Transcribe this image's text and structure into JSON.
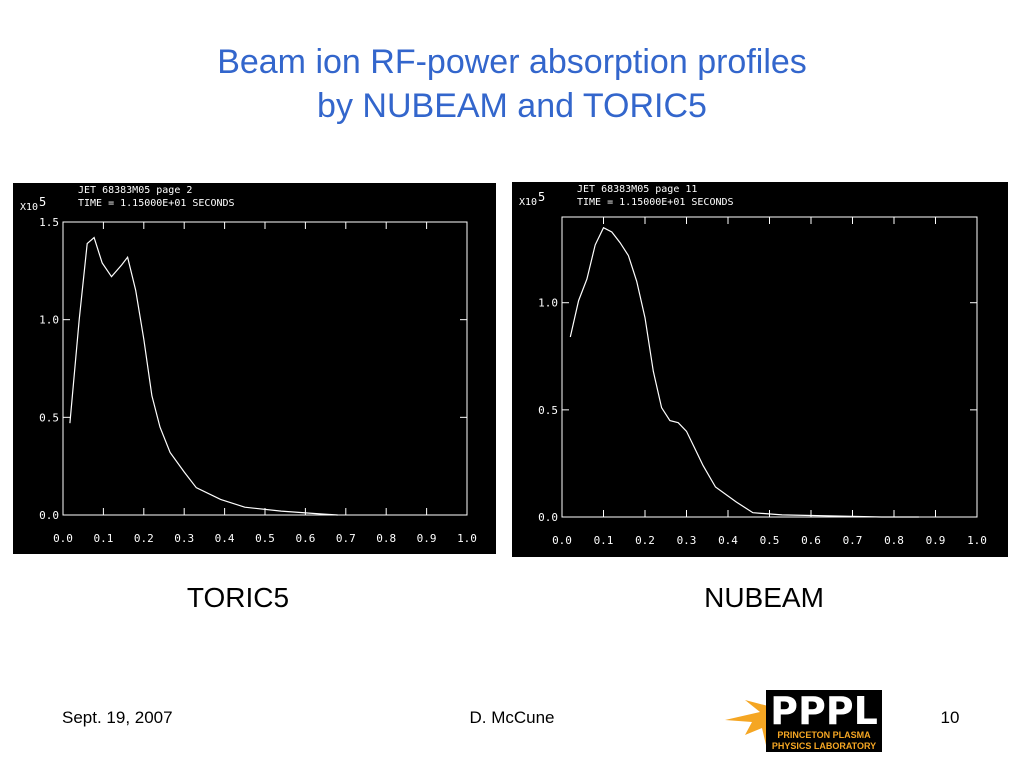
{
  "title": [
    "Beam ion RF-power absorption profiles",
    "by NUBEAM and TORIC5"
  ],
  "footer": {
    "date": "Sept. 19, 2007",
    "author": "D. McCune",
    "page": "10",
    "logo": {
      "name": "PPPL",
      "line1": "PRINCETON PLASMA",
      "line2": "PHYSICS LABORATORY"
    }
  },
  "chart_data": [
    {
      "type": "line",
      "title": "JET 68383M05 page 2",
      "subtitle": "TIME = 1.15000E+01 SECONDS",
      "caption": "TORIC5",
      "ylabel": "X10",
      "ylabel_exponent": "5",
      "color": "#ffffff",
      "x": [
        0.017,
        0.04,
        0.06,
        0.077,
        0.097,
        0.12,
        0.145,
        0.16,
        0.18,
        0.2,
        0.22,
        0.24,
        0.265,
        0.3,
        0.33,
        0.39,
        0.45,
        0.54,
        0.64,
        0.68
      ],
      "values": [
        0.47,
        1.0,
        1.39,
        1.42,
        1.29,
        1.22,
        1.28,
        1.32,
        1.15,
        0.9,
        0.61,
        0.45,
        0.32,
        0.22,
        0.14,
        0.08,
        0.04,
        0.02,
        0.005,
        0
      ],
      "xlim": [
        0,
        1.0
      ],
      "ylim": [
        0,
        1.5
      ],
      "xticks": [
        {
          "value": 0,
          "label": "0.0"
        },
        {
          "value": 0.1,
          "label": "0.1"
        },
        {
          "value": 0.2,
          "label": "0.2"
        },
        {
          "value": 0.3,
          "label": "0.3"
        },
        {
          "value": 0.4,
          "label": "0.4"
        },
        {
          "value": 0.5,
          "label": "0.5"
        },
        {
          "value": 0.6,
          "label": "0.6"
        },
        {
          "value": 0.7,
          "label": "0.7"
        },
        {
          "value": 0.8,
          "label": "0.8"
        },
        {
          "value": 0.9,
          "label": "0.9"
        },
        {
          "value": 1.0,
          "label": "1.0"
        }
      ],
      "yticks": [
        {
          "value": 0,
          "label": "0.0"
        },
        0.5,
        {
          "value": 1.0,
          "label": "1.0"
        },
        1.5
      ]
    },
    {
      "type": "line",
      "title": "JET 68383M05 page 11",
      "subtitle": "TIME = 1.15000E+01 SECONDS",
      "caption": "NUBEAM",
      "ylabel": "X10",
      "ylabel_exponent": "5",
      "color": "#ffffff",
      "x": [
        0.02,
        0.04,
        0.06,
        0.08,
        0.1,
        0.12,
        0.14,
        0.16,
        0.18,
        0.2,
        0.22,
        0.24,
        0.26,
        0.28,
        0.3,
        0.32,
        0.34,
        0.37,
        0.42,
        0.46,
        0.53,
        0.77,
        0.86
      ],
      "values": [
        0.84,
        1.01,
        1.11,
        1.27,
        1.35,
        1.33,
        1.28,
        1.22,
        1.1,
        0.93,
        0.68,
        0.51,
        0.45,
        0.44,
        0.4,
        0.32,
        0.24,
        0.14,
        0.07,
        0.02,
        0.01,
        0,
        0
      ],
      "xlim": [
        0,
        1.0
      ],
      "ylim": [
        0,
        1.4
      ],
      "xticks": [
        {
          "value": 0,
          "label": "0.0"
        },
        {
          "value": 0.1,
          "label": "0.1"
        },
        {
          "value": 0.2,
          "label": "0.2"
        },
        {
          "value": 0.3,
          "label": "0.3"
        },
        {
          "value": 0.4,
          "label": "0.4"
        },
        {
          "value": 0.5,
          "label": "0.5"
        },
        {
          "value": 0.6,
          "label": "0.6"
        },
        {
          "value": 0.7,
          "label": "0.7"
        },
        {
          "value": 0.8,
          "label": "0.8"
        },
        {
          "value": 0.9,
          "label": "0.9"
        },
        {
          "value": 1.0,
          "label": "1.0"
        }
      ],
      "yticks": [
        {
          "value": 0,
          "label": "0.0"
        },
        0.5,
        {
          "value": 1.0,
          "label": "1.0"
        }
      ]
    }
  ]
}
